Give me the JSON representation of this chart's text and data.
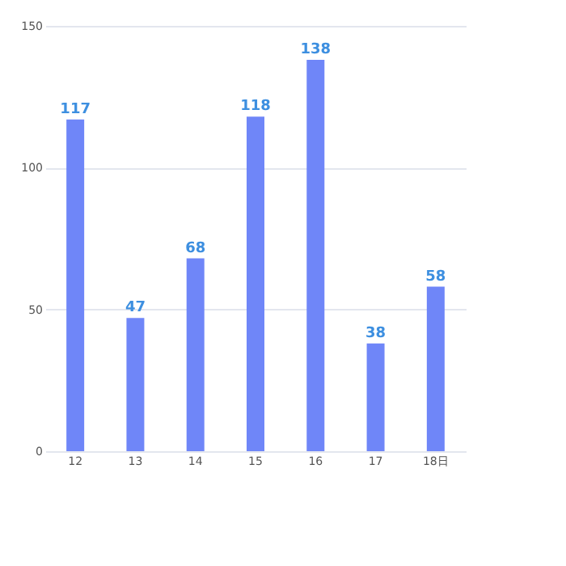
{
  "chart_data": {
    "type": "bar",
    "categories": [
      "12",
      "13",
      "14",
      "15",
      "16",
      "17",
      "18日"
    ],
    "values": [
      117,
      47,
      68,
      118,
      138,
      38,
      58
    ],
    "color": "#6f86f8",
    "ylim": [
      0,
      150
    ],
    "yticks": [
      0,
      50,
      100,
      150
    ],
    "grid": "y",
    "data_labels": true
  }
}
